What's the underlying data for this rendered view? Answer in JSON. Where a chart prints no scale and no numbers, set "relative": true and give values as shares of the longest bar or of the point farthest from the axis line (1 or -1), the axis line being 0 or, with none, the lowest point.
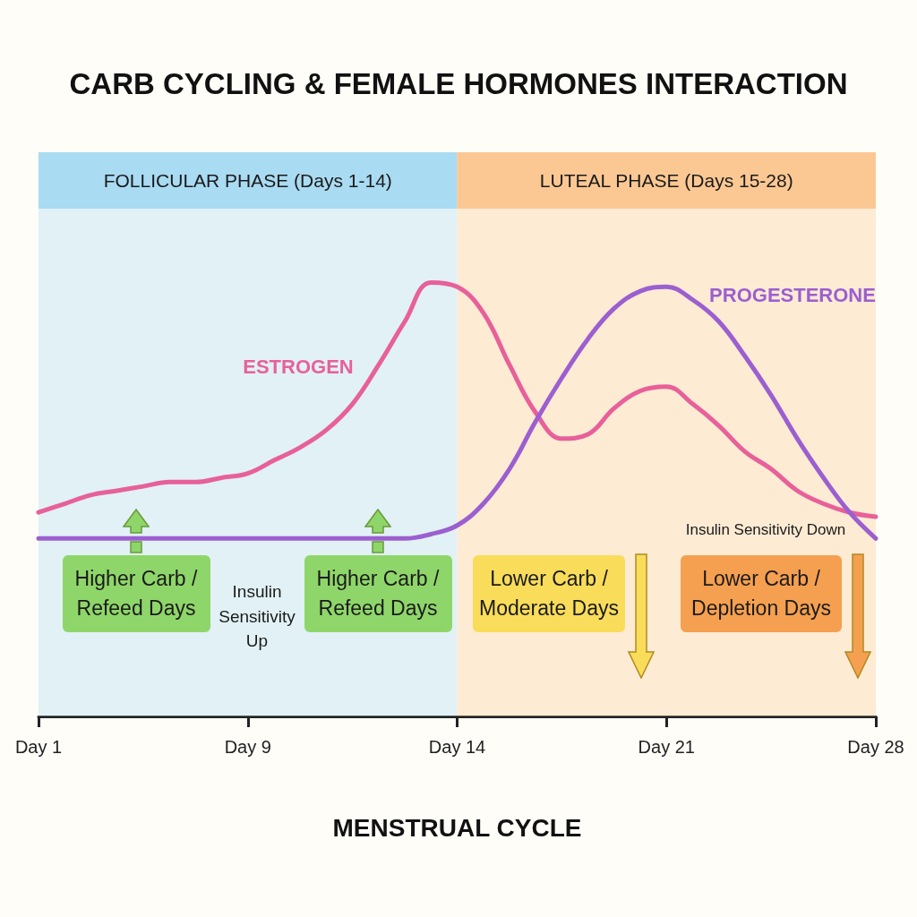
{
  "chart_data": {
    "type": "line",
    "title": "CARB CYCLING & FEMALE HORMONES INTERACTION",
    "xlabel": "MENSTRUAL CYCLE",
    "relative": true,
    "categories": [
      "Day 1",
      null,
      null,
      null,
      null,
      null,
      null,
      null,
      "Day 9",
      null,
      null,
      null,
      null,
      null,
      null,
      null,
      "Day 14",
      null,
      null,
      null,
      null,
      null,
      null,
      null,
      "Day 21",
      null,
      null,
      null,
      null,
      null,
      null,
      null,
      "Day 28"
    ],
    "series": [
      {
        "name": "ESTROGEN",
        "color": "#e8609a",
        "values": [
          0.47,
          0.49,
          0.51,
          0.52,
          0.53,
          0.54,
          0.54,
          0.55,
          0.56,
          0.59,
          0.62,
          0.66,
          0.72,
          0.81,
          0.91,
          1.0,
          0.99,
          0.93,
          0.81,
          0.7,
          0.64,
          0.65,
          0.71,
          0.75,
          0.76,
          0.72,
          0.67,
          0.61,
          0.57,
          0.52,
          0.49,
          0.47,
          0.46
        ]
      },
      {
        "name": "PROGESTERONE",
        "color": "#9b5fd0",
        "values": [
          0.41,
          0.41,
          0.41,
          0.41,
          0.41,
          0.41,
          0.41,
          0.41,
          0.41,
          0.41,
          0.41,
          0.41,
          0.41,
          0.41,
          0.41,
          0.42,
          0.44,
          0.49,
          0.57,
          0.68,
          0.78,
          0.87,
          0.94,
          0.98,
          0.99,
          0.96,
          0.91,
          0.83,
          0.74,
          0.64,
          0.55,
          0.47,
          0.41
        ]
      }
    ],
    "bands": [
      {
        "axis": "x",
        "from": "Day 1",
        "to": "Day 14",
        "label": "FOLLICULAR PHASE (Days 1-14)",
        "color": "#a9dbf2"
      },
      {
        "axis": "x",
        "from": "Day 14",
        "to": "Day 28",
        "label": "LUTEAL PHASE (Days 15-28)",
        "color": "#fbc893"
      }
    ],
    "annotations": [
      "Higher Carb / Refeed Days",
      "Insulin Sensitivity Up",
      "Higher Carb / Refeed Days",
      "Lower Carb / Moderate Days",
      "Insulin Sensitivity Down",
      "Lower Carb / Depletion Days"
    ],
    "grid": false,
    "legend": false,
    "marker": "none",
    "line_style": "solid"
  }
}
